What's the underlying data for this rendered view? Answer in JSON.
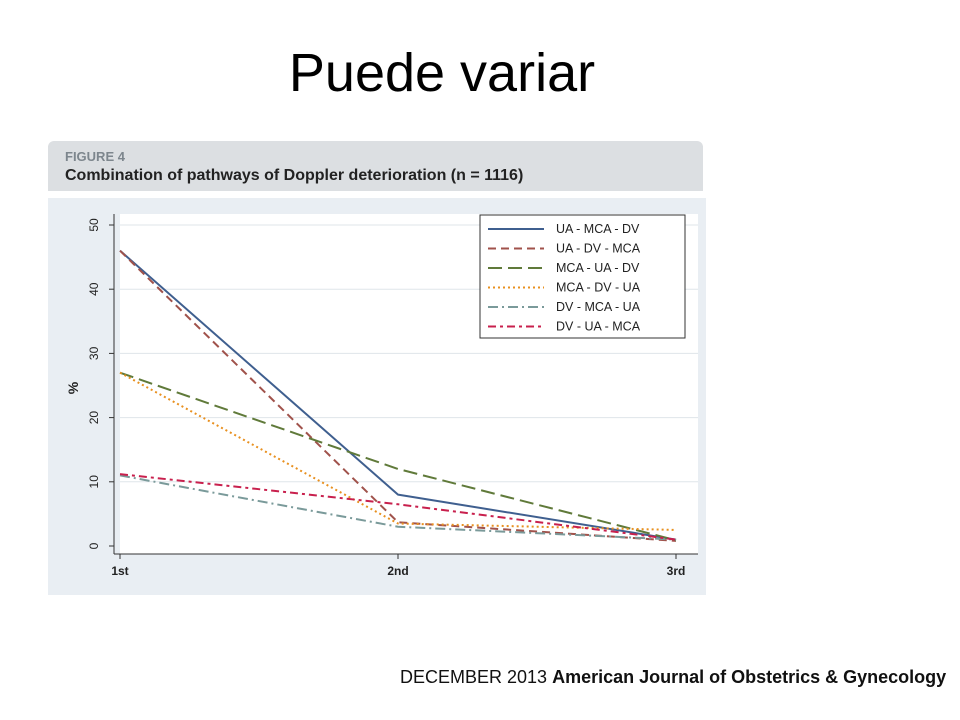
{
  "slide": {
    "title": "Puede variar"
  },
  "figure": {
    "label": "FIGURE 4",
    "caption": "Combination of pathways of Doppler deterioration (n = 1116)"
  },
  "footer": {
    "date": "DECEMBER 2013",
    "journal": "American Journal of Obstetrics & Gynecology"
  },
  "chart_data": {
    "type": "line",
    "title": "",
    "xlabel": "",
    "ylabel": "%",
    "categories": [
      "1st",
      "2nd",
      "3rd"
    ],
    "ylim": [
      0,
      50
    ],
    "yticks": [
      0,
      10,
      20,
      30,
      40,
      50
    ],
    "grid": true,
    "legend_position": "top-right",
    "series": [
      {
        "name": "UA - MCA - DV",
        "values": [
          46,
          8,
          1
        ],
        "color": "#3f5f8f",
        "dash": "solid"
      },
      {
        "name": "UA - DV - MCA",
        "values": [
          46,
          3.7,
          0.8
        ],
        "color": "#a0524b",
        "dash": "dash"
      },
      {
        "name": "MCA - UA - DV",
        "values": [
          27,
          12,
          0.9
        ],
        "color": "#607a3a",
        "dash": "longdash"
      },
      {
        "name": "MCA - DV - UA",
        "values": [
          27,
          3.5,
          2.5
        ],
        "color": "#e8901f",
        "dash": "dot"
      },
      {
        "name": "DV - MCA - UA",
        "values": [
          11,
          3,
          1
        ],
        "color": "#7a9a9a",
        "dash": "dashdot"
      },
      {
        "name": "DV - UA - MCA",
        "values": [
          11.2,
          6.5,
          1
        ],
        "color": "#c8204d",
        "dash": "dashdot2"
      }
    ]
  }
}
